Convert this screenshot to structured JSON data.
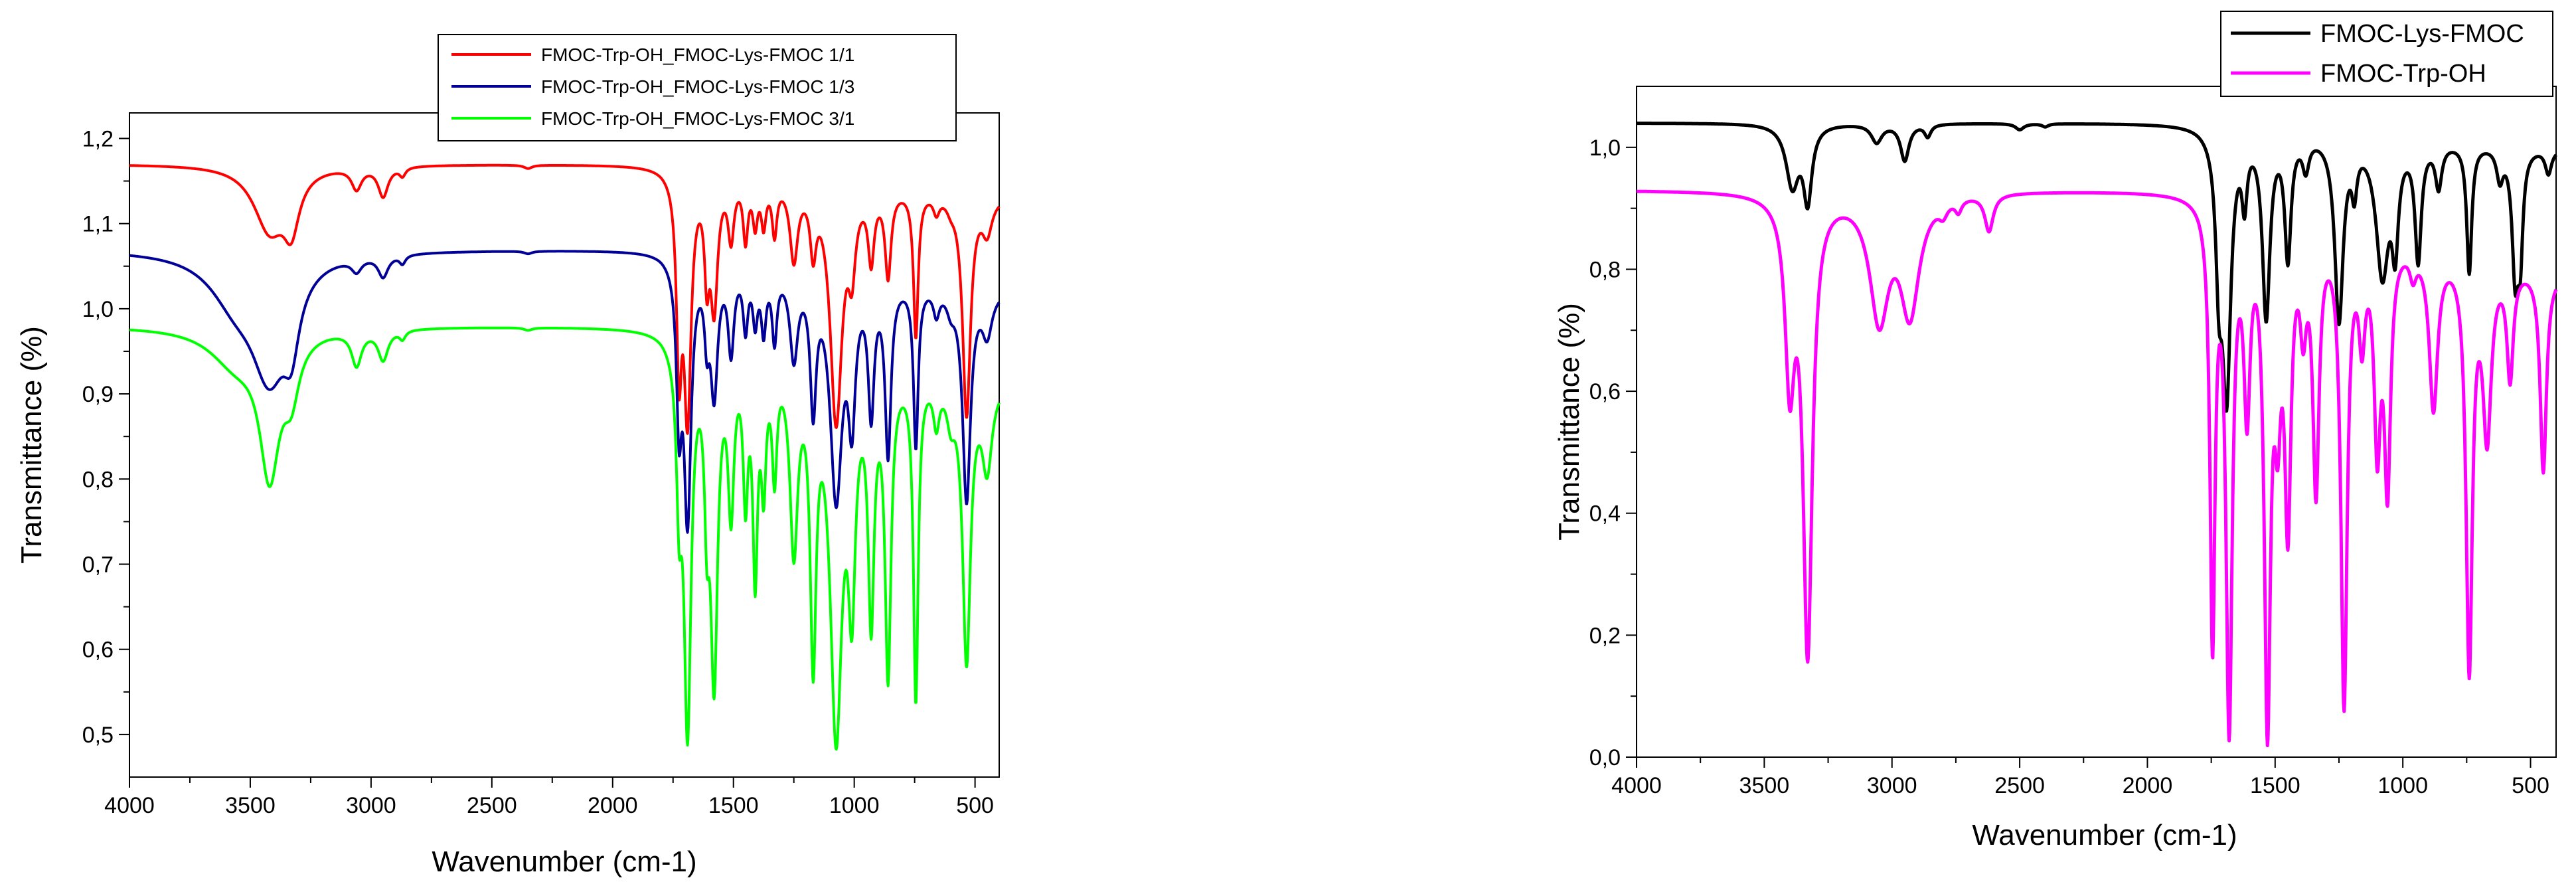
{
  "chart_data": [
    {
      "type": "line",
      "xlabel": "Wavenumber (cm-1)",
      "ylabel": "Transmittance (%)",
      "xlim": [
        4000,
        400
      ],
      "ylim": [
        0.45,
        1.23
      ],
      "xticks": [
        4000,
        3500,
        3000,
        2500,
        2000,
        1500,
        1000,
        500
      ],
      "xtick_labels": [
        "4000",
        "3500",
        "3000",
        "2500",
        "2000",
        "1500",
        "1000",
        "500"
      ],
      "yticks": [
        0.5,
        0.6,
        0.7,
        0.8,
        0.9,
        1.0,
        1.1,
        1.2
      ],
      "ytick_labels": [
        "0,5",
        "0,6",
        "0,7",
        "0,8",
        "0,9",
        "1,0",
        "1,1",
        "1,2"
      ],
      "legend_position": "top-right",
      "grid": false,
      "series": [
        {
          "name": "FMOC-Trp-OH_FMOC-Lys-FMOC 1/1",
          "color": "#ff0000",
          "baseline": 1.17,
          "end_value": 1.135,
          "bands": [
            [
              3420,
              80,
              -0.075
            ],
            [
              3330,
              40,
              -0.06
            ],
            [
              3060,
              25,
              -0.025
            ],
            [
              2950,
              25,
              -0.035
            ],
            [
              2870,
              15,
              -0.01
            ],
            [
              2350,
              20,
              -0.004
            ],
            [
              1725,
              13,
              -0.21
            ],
            [
              1690,
              18,
              -0.28
            ],
            [
              1610,
              12,
              -0.1
            ],
            [
              1580,
              18,
              -0.15
            ],
            [
              1510,
              15,
              -0.07
            ],
            [
              1450,
              12,
              -0.07
            ],
            [
              1410,
              12,
              -0.05
            ],
            [
              1375,
              12,
              -0.05
            ],
            [
              1330,
              12,
              -0.06
            ],
            [
              1250,
              20,
              -0.09
            ],
            [
              1170,
              15,
              -0.07
            ],
            [
              1075,
              30,
              -0.28
            ],
            [
              1010,
              18,
              -0.08
            ],
            [
              930,
              15,
              -0.08
            ],
            [
              860,
              15,
              -0.1
            ],
            [
              745,
              12,
              -0.17
            ],
            [
              660,
              15,
              -0.02
            ],
            [
              600,
              20,
              -0.01
            ],
            [
              535,
              20,
              -0.26
            ],
            [
              450,
              25,
              -0.04
            ]
          ]
        },
        {
          "name": "FMOC-Trp-OH_FMOC-Lys-FMOC 1/3",
          "color": "#000099",
          "baseline": 1.07,
          "end_value": 1.025,
          "bands": [
            [
              3560,
              130,
              -0.05
            ],
            [
              3420,
              90,
              -0.13
            ],
            [
              3330,
              40,
              -0.07
            ],
            [
              3060,
              25,
              -0.015
            ],
            [
              2950,
              25,
              -0.025
            ],
            [
              2870,
              15,
              -0.01
            ],
            [
              2350,
              20,
              -0.003
            ],
            [
              1725,
              13,
              -0.17
            ],
            [
              1690,
              18,
              -0.3
            ],
            [
              1610,
              12,
              -0.07
            ],
            [
              1580,
              18,
              -0.15
            ],
            [
              1510,
              15,
              -0.1
            ],
            [
              1450,
              12,
              -0.07
            ],
            [
              1410,
              12,
              -0.06
            ],
            [
              1375,
              12,
              -0.07
            ],
            [
              1330,
              12,
              -0.08
            ],
            [
              1250,
              20,
              -0.1
            ],
            [
              1170,
              15,
              -0.15
            ],
            [
              1075,
              30,
              -0.26
            ],
            [
              1010,
              18,
              -0.15
            ],
            [
              930,
              15,
              -0.15
            ],
            [
              860,
              15,
              -0.2
            ],
            [
              745,
              12,
              -0.19
            ],
            [
              660,
              15,
              -0.03
            ],
            [
              600,
              20,
              -0.02
            ],
            [
              535,
              20,
              -0.25
            ],
            [
              450,
              25,
              -0.05
            ]
          ]
        },
        {
          "name": "FMOC-Trp-OH_FMOC-Lys-FMOC 3/1",
          "color": "#00ff00",
          "baseline": 0.98,
          "end_value": 0.92,
          "bands": [
            [
              3560,
              130,
              -0.04
            ],
            [
              3420,
              50,
              -0.16
            ],
            [
              3330,
              40,
              -0.06
            ],
            [
              3060,
              25,
              -0.04
            ],
            [
              2950,
              25,
              -0.035
            ],
            [
              2870,
              15,
              -0.01
            ],
            [
              2350,
              20,
              -0.003
            ],
            [
              1725,
              13,
              -0.16
            ],
            [
              1690,
              18,
              -0.45
            ],
            [
              1610,
              12,
              -0.15
            ],
            [
              1580,
              18,
              -0.38
            ],
            [
              1510,
              15,
              -0.18
            ],
            [
              1450,
              12,
              -0.16
            ],
            [
              1410,
              12,
              -0.25
            ],
            [
              1375,
              12,
              -0.14
            ],
            [
              1330,
              12,
              -0.13
            ],
            [
              1250,
              20,
              -0.22
            ],
            [
              1170,
              15,
              -0.33
            ],
            [
              1075,
              30,
              -0.43
            ],
            [
              1010,
              18,
              -0.24
            ],
            [
              930,
              15,
              -0.28
            ],
            [
              860,
              15,
              -0.35
            ],
            [
              745,
              12,
              -0.38
            ],
            [
              660,
              15,
              -0.05
            ],
            [
              600,
              20,
              -0.04
            ],
            [
              535,
              20,
              -0.33
            ],
            [
              450,
              25,
              -0.1
            ]
          ]
        }
      ]
    },
    {
      "type": "line",
      "xlabel": "Wavenumber (cm-1)",
      "ylabel": "Transmittance (%)",
      "xlim": [
        4000,
        400
      ],
      "ylim": [
        0.0,
        1.1
      ],
      "xticks": [
        4000,
        3500,
        3000,
        2500,
        2000,
        1500,
        1000,
        500
      ],
      "xtick_labels": [
        "4000",
        "3500",
        "3000",
        "2500",
        "2000",
        "1500",
        "1000",
        "500"
      ],
      "yticks": [
        0.0,
        0.2,
        0.4,
        0.6,
        0.8,
        1.0
      ],
      "ytick_labels": [
        "0,0",
        "0,2",
        "0,4",
        "0,6",
        "0,8",
        "1,0"
      ],
      "legend_position": "top-right",
      "grid": false,
      "series": [
        {
          "name": "FMOC-Lys-FMOC",
          "color": "#000000",
          "baseline": 1.04,
          "end_value": 1.0,
          "bands": [
            [
              3390,
              30,
              -0.1
            ],
            [
              3330,
              20,
              -0.12
            ],
            [
              3060,
              25,
              -0.03
            ],
            [
              2950,
              20,
              -0.06
            ],
            [
              2860,
              15,
              -0.02
            ],
            [
              2500,
              20,
              -0.01
            ],
            [
              2400,
              15,
              -0.005
            ],
            [
              1720,
              15,
              -0.2
            ],
            [
              1690,
              20,
              -0.42
            ],
            [
              1620,
              12,
              -0.1
            ],
            [
              1535,
              18,
              -0.3
            ],
            [
              1450,
              15,
              -0.2
            ],
            [
              1380,
              15,
              -0.05
            ],
            [
              1250,
              20,
              -0.3
            ],
            [
              1190,
              12,
              -0.07
            ],
            [
              1080,
              30,
              -0.22
            ],
            [
              1030,
              15,
              -0.15
            ],
            [
              940,
              15,
              -0.19
            ],
            [
              860,
              15,
              -0.07
            ],
            [
              740,
              12,
              -0.21
            ],
            [
              620,
              15,
              -0.05
            ],
            [
              560,
              15,
              -0.2
            ],
            [
              540,
              12,
              -0.15
            ],
            [
              430,
              15,
              -0.04
            ]
          ]
        },
        {
          "name": "FMOC-Trp-OH",
          "color": "#ff00ff",
          "baseline": 0.93,
          "end_value": 0.8,
          "bands": [
            [
              3400,
              22,
              -0.29
            ],
            [
              3330,
              22,
              -0.74
            ],
            [
              3050,
              45,
              -0.2
            ],
            [
              2930,
              45,
              -0.19
            ],
            [
              2800,
              20,
              -0.02
            ],
            [
              2740,
              15,
              -0.02
            ],
            [
              2620,
              20,
              -0.06
            ],
            [
              1745,
              12,
              -0.71
            ],
            [
              1680,
              15,
              -0.84
            ],
            [
              1610,
              15,
              -0.3
            ],
            [
              1530,
              15,
              -0.81
            ],
            [
              1490,
              15,
              -0.25
            ],
            [
              1450,
              15,
              -0.47
            ],
            [
              1390,
              15,
              -0.14
            ],
            [
              1340,
              15,
              -0.42
            ],
            [
              1230,
              15,
              -0.77
            ],
            [
              1160,
              15,
              -0.15
            ],
            [
              1100,
              15,
              -0.32
            ],
            [
              1060,
              15,
              -0.39
            ],
            [
              960,
              15,
              -0.04
            ],
            [
              880,
              20,
              -0.26
            ],
            [
              740,
              15,
              -0.67
            ],
            [
              670,
              20,
              -0.28
            ],
            [
              580,
              15,
              -0.18
            ],
            [
              450,
              15,
              -0.33
            ]
          ]
        }
      ]
    }
  ]
}
